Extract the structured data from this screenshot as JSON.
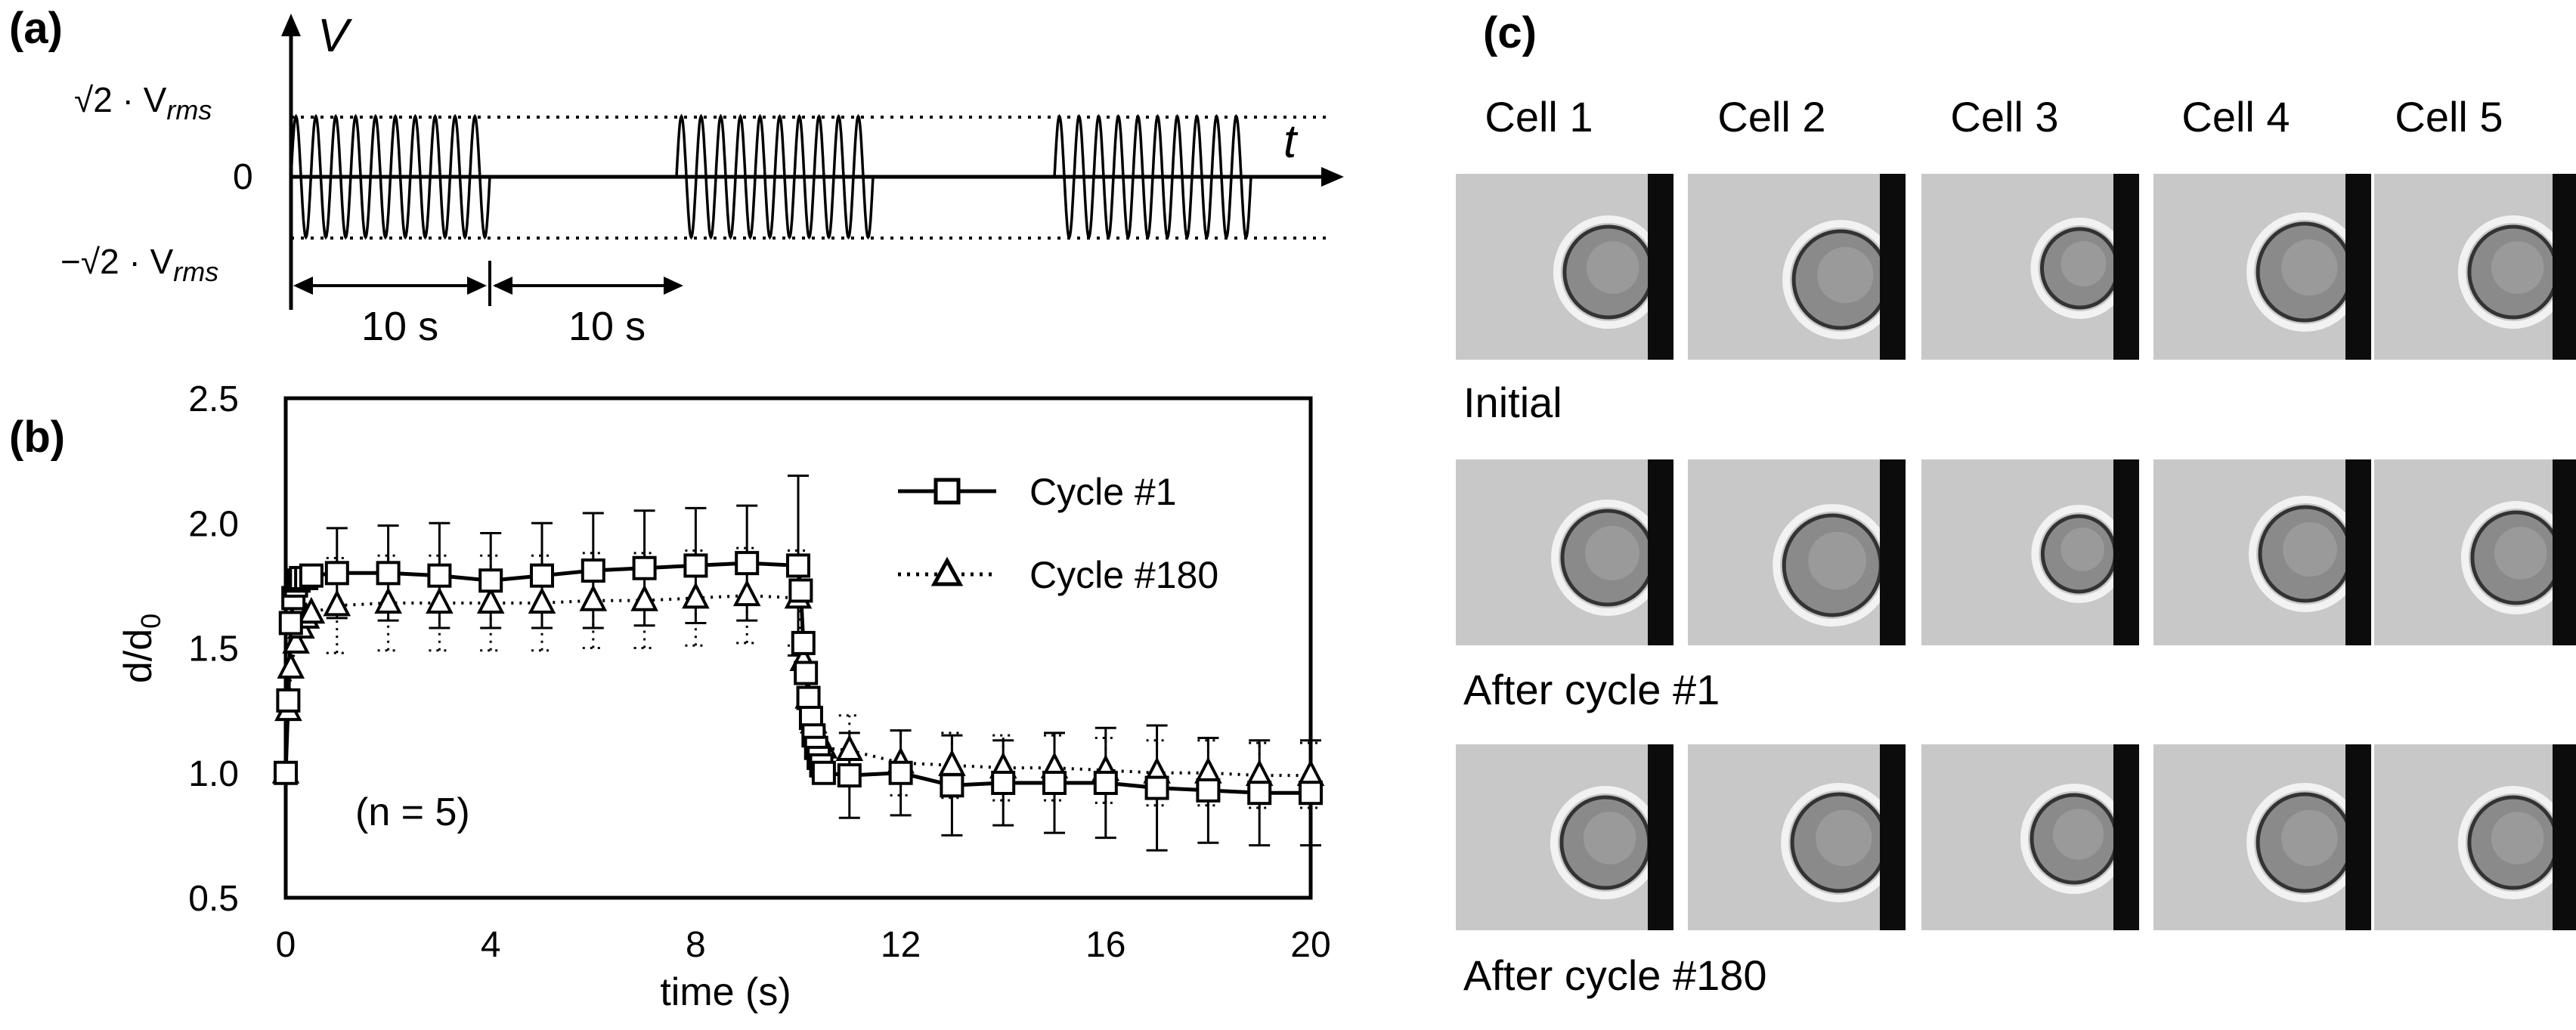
{
  "panels": {
    "a": "(a)",
    "b": "(b)",
    "c": "(c)"
  },
  "panel_a": {
    "v_axis": "V",
    "t_axis": "t",
    "y_top": "√2 · V",
    "y_top_sub": "rms",
    "y_zero": "0",
    "y_bottom": "−√2 · V",
    "y_bottom_sub": "rms",
    "span1": "10 s",
    "span2": "10 s"
  },
  "chart_data": {
    "type": "line",
    "xlabel": "time (s)",
    "ylabel": "d/d",
    "ylabel_sub": "0",
    "xlim": [
      0,
      20
    ],
    "ylim": [
      0.5,
      2.5
    ],
    "xticks": [
      0,
      4,
      8,
      12,
      16,
      20
    ],
    "yticks": [
      0.5,
      1.0,
      1.5,
      2.0,
      2.5
    ],
    "ytick_labels": [
      "0.5",
      "1.0",
      "1.5",
      "2.0",
      "2.5"
    ],
    "annotation": "(n = 5)",
    "legend_position": "top-right",
    "series": [
      {
        "name": "Cycle #1",
        "marker": "square",
        "line": "solid",
        "points": [
          {
            "x": 0.0,
            "y": 1.0,
            "err": 0
          },
          {
            "x": 0.05,
            "y": 1.29,
            "err": 0
          },
          {
            "x": 0.1,
            "y": 1.6,
            "err": 0
          },
          {
            "x": 0.15,
            "y": 1.7,
            "err": 0
          },
          {
            "x": 0.2,
            "y": 1.75,
            "err": 0
          },
          {
            "x": 0.25,
            "y": 1.77,
            "err": 0
          },
          {
            "x": 0.3,
            "y": 1.78,
            "err": 0
          },
          {
            "x": 0.4,
            "y": 1.78,
            "err": 0
          },
          {
            "x": 0.5,
            "y": 1.79,
            "err": 0
          },
          {
            "x": 1,
            "y": 1.8,
            "err": 0.18
          },
          {
            "x": 2,
            "y": 1.8,
            "err": 0.19
          },
          {
            "x": 3,
            "y": 1.79,
            "err": 0.21
          },
          {
            "x": 4,
            "y": 1.77,
            "err": 0.19
          },
          {
            "x": 5,
            "y": 1.79,
            "err": 0.21
          },
          {
            "x": 6,
            "y": 1.81,
            "err": 0.23
          },
          {
            "x": 7,
            "y": 1.82,
            "err": 0.23
          },
          {
            "x": 8,
            "y": 1.83,
            "err": 0.23
          },
          {
            "x": 9,
            "y": 1.84,
            "err": 0.23
          },
          {
            "x": 10,
            "y": 1.83,
            "err": 0.36
          },
          {
            "x": 10.05,
            "y": 1.73,
            "err": 0
          },
          {
            "x": 10.1,
            "y": 1.52,
            "err": 0
          },
          {
            "x": 10.15,
            "y": 1.4,
            "err": 0
          },
          {
            "x": 10.2,
            "y": 1.3,
            "err": 0
          },
          {
            "x": 10.25,
            "y": 1.22,
            "err": 0
          },
          {
            "x": 10.3,
            "y": 1.15,
            "err": 0
          },
          {
            "x": 10.35,
            "y": 1.1,
            "err": 0
          },
          {
            "x": 10.4,
            "y": 1.06,
            "err": 0
          },
          {
            "x": 10.45,
            "y": 1.03,
            "err": 0
          },
          {
            "x": 10.5,
            "y": 1.0,
            "err": 0
          },
          {
            "x": 11,
            "y": 0.99,
            "err": 0.17
          },
          {
            "x": 12,
            "y": 1.0,
            "err": 0.17
          },
          {
            "x": 13,
            "y": 0.95,
            "err": 0.2
          },
          {
            "x": 14,
            "y": 0.96,
            "err": 0.17
          },
          {
            "x": 15,
            "y": 0.96,
            "err": 0.2
          },
          {
            "x": 16,
            "y": 0.96,
            "err": 0.22
          },
          {
            "x": 17,
            "y": 0.94,
            "err": 0.25
          },
          {
            "x": 18,
            "y": 0.93,
            "err": 0.21
          },
          {
            "x": 19,
            "y": 0.92,
            "err": 0.21
          },
          {
            "x": 20,
            "y": 0.92,
            "err": 0.21
          }
        ]
      },
      {
        "name": "Cycle #180",
        "marker": "triangle",
        "line": "dotted",
        "points": [
          {
            "x": 0.0,
            "y": 1.0,
            "err": 0
          },
          {
            "x": 0.05,
            "y": 1.25,
            "err": 0
          },
          {
            "x": 0.1,
            "y": 1.42,
            "err": 0
          },
          {
            "x": 0.2,
            "y": 1.52,
            "err": 0
          },
          {
            "x": 0.3,
            "y": 1.58,
            "err": 0
          },
          {
            "x": 0.4,
            "y": 1.62,
            "err": 0
          },
          {
            "x": 0.5,
            "y": 1.64,
            "err": 0
          },
          {
            "x": 1,
            "y": 1.67,
            "err": 0.19
          },
          {
            "x": 2,
            "y": 1.68,
            "err": 0.19
          },
          {
            "x": 3,
            "y": 1.68,
            "err": 0.19
          },
          {
            "x": 4,
            "y": 1.68,
            "err": 0.19
          },
          {
            "x": 5,
            "y": 1.68,
            "err": 0.19
          },
          {
            "x": 6,
            "y": 1.69,
            "err": 0.19
          },
          {
            "x": 7,
            "y": 1.69,
            "err": 0.19
          },
          {
            "x": 8,
            "y": 1.7,
            "err": 0.19
          },
          {
            "x": 9,
            "y": 1.71,
            "err": 0.19
          },
          {
            "x": 10,
            "y": 1.7,
            "err": 0.19
          },
          {
            "x": 10.1,
            "y": 1.45,
            "err": 0
          },
          {
            "x": 10.2,
            "y": 1.3,
            "err": 0
          },
          {
            "x": 10.3,
            "y": 1.2,
            "err": 0
          },
          {
            "x": 10.4,
            "y": 1.13,
            "err": 0
          },
          {
            "x": 10.5,
            "y": 1.1,
            "err": 0
          },
          {
            "x": 11,
            "y": 1.09,
            "err": 0.14
          },
          {
            "x": 12,
            "y": 1.04,
            "err": 0.13
          },
          {
            "x": 13,
            "y": 1.03,
            "err": 0.13
          },
          {
            "x": 14,
            "y": 1.02,
            "err": 0.13
          },
          {
            "x": 15,
            "y": 1.02,
            "err": 0.13
          },
          {
            "x": 16,
            "y": 1.01,
            "err": 0.13
          },
          {
            "x": 17,
            "y": 1.0,
            "err": 0.13
          },
          {
            "x": 18,
            "y": 1.0,
            "err": 0.13
          },
          {
            "x": 19,
            "y": 0.99,
            "err": 0.13
          },
          {
            "x": 20,
            "y": 0.99,
            "err": 0.13
          }
        ]
      }
    ]
  },
  "panel_c": {
    "cells": [
      "Cell 1",
      "Cell 2",
      "Cell 3",
      "Cell 4",
      "Cell 5"
    ],
    "rows": [
      "Initial",
      "After  cycle #1",
      "After cycle #180"
    ]
  }
}
